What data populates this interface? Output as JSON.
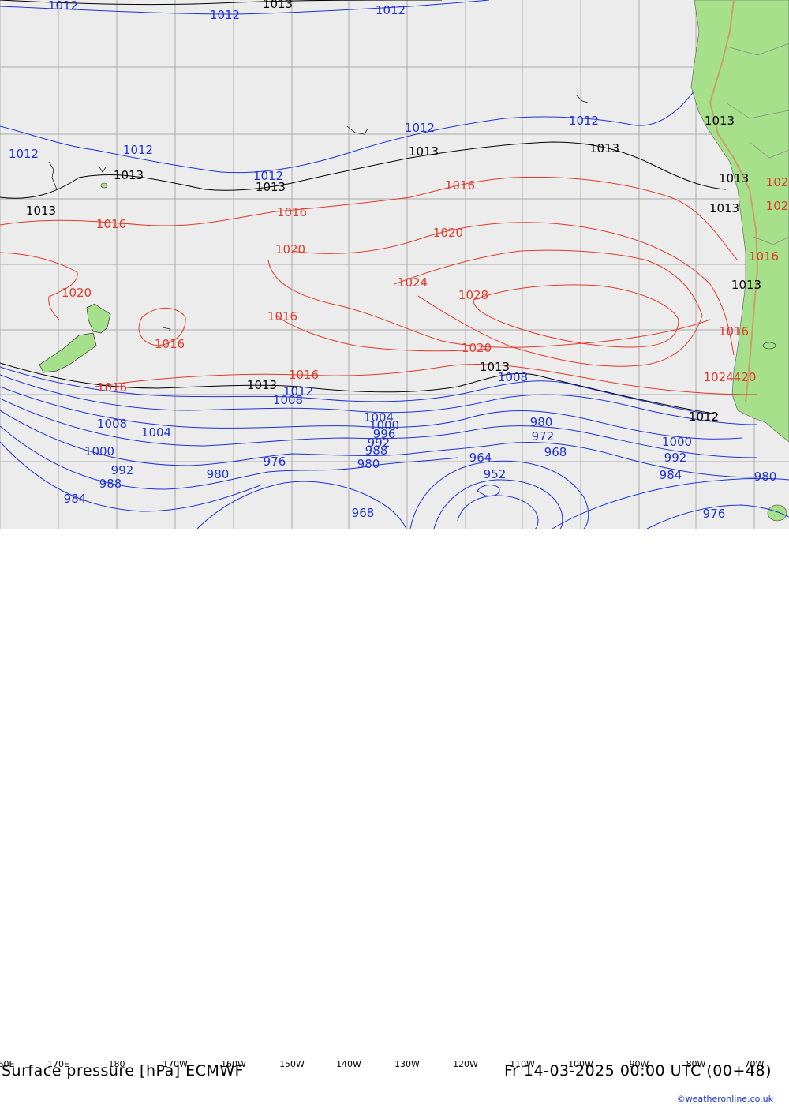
{
  "title": "Surface pressure [hPa] ECMWF",
  "valid_time": "Fr 14-03-2025 00:00 UTC (00+48)",
  "credit": "©weatheronline.co.uk",
  "longitude_labels": [
    "60E",
    "170E",
    "180",
    "170W",
    "160W",
    "150W",
    "140W",
    "130W",
    "120W",
    "110W",
    "100W",
    "90W",
    "80W",
    "70W"
  ],
  "colors": {
    "ocean": "#ececec",
    "land": "#a6e08a",
    "low_isobar": "#1f33d6",
    "high_isobar": "#e03a2a",
    "neutral_isobar": "#000000",
    "grid": "#aaaaaa"
  },
  "isobar_labels": {
    "1012": "1012",
    "1013": "1013",
    "1016": "1016",
    "1020": "1020",
    "1024": "1024",
    "1028": "1028",
    "1008": "1008",
    "1004": "1004",
    "1000": "1000",
    "996": "996",
    "992": "992",
    "988": "988",
    "984": "984",
    "980": "980",
    "976": "976",
    "972": "972",
    "968": "968",
    "964": "964",
    "952": "952",
    "102": "102",
    "1024420": "1024420",
    "1000b": "1000",
    "1004b": "1004"
  }
}
